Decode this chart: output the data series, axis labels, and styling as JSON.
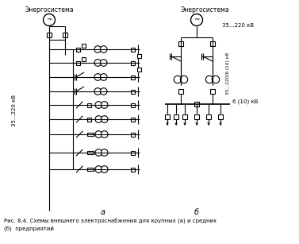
{
  "background_color": "#ffffff",
  "line_color": "#000000",
  "label_a": "а",
  "label_b": "б",
  "text_energosistema": "Энергосистема",
  "text_35_220": "35...220 кВ",
  "text_35_220_6_10": "35...220/6 (10) кВ",
  "text_6_10": "6 (10) кВ",
  "caption_line1": "Рис. 8.4. Схемы внешнего электроснабжения для крупных (а) и средних",
  "caption_line2": "(б)  предприятий"
}
